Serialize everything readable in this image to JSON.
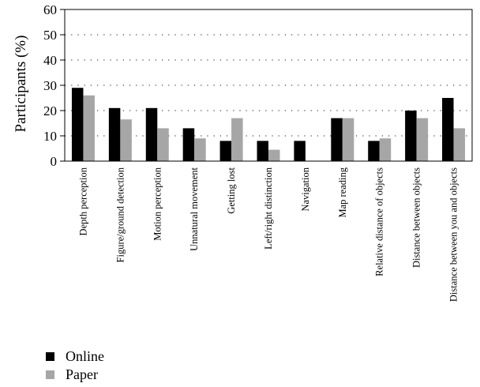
{
  "chart_data": {
    "type": "bar",
    "ylabel": "Participants (%)",
    "ylim": [
      0,
      60
    ],
    "yticks": [
      0,
      10,
      20,
      30,
      40,
      50,
      60
    ],
    "grid": "horizontal dotted",
    "legend_position": "bottom-left",
    "categories": [
      "Depth perception",
      "Figure/ground detection",
      "Motion perception",
      "Unnatural movement",
      "Getting lost",
      "Left/right distinction",
      "Navigation",
      "Map reading",
      "Relative distance of objects",
      "Distance between objects",
      "Distance between you and objects"
    ],
    "series": [
      {
        "name": "Online",
        "color": "#000000",
        "values": [
          29,
          21,
          21,
          13,
          8,
          8,
          8,
          17,
          8,
          20,
          25
        ]
      },
      {
        "name": "Paper",
        "color": "#a6a6a6",
        "values": [
          26,
          16.5,
          13,
          9,
          17,
          4.5,
          0,
          17,
          9,
          17,
          13
        ]
      }
    ]
  }
}
